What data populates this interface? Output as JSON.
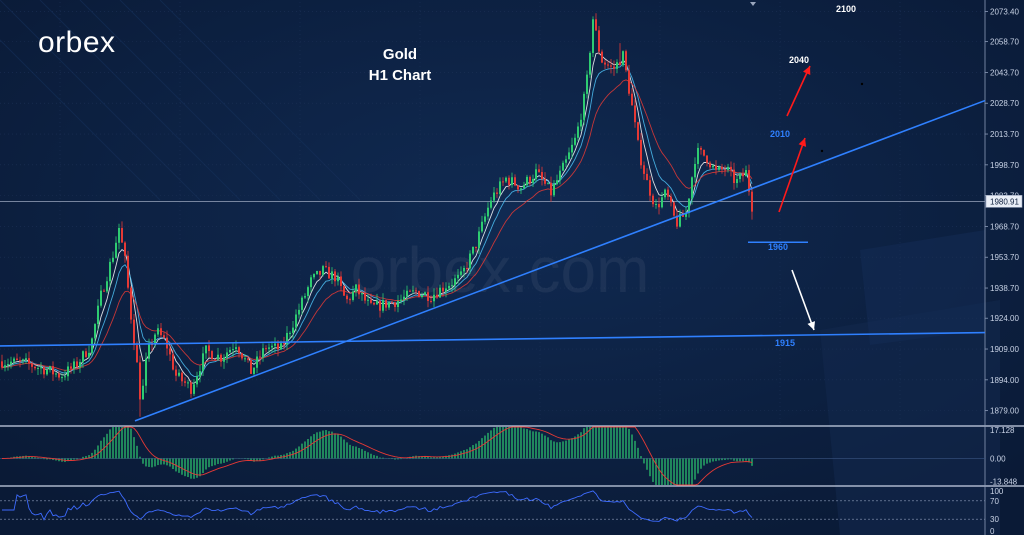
{
  "brand": {
    "logo_text": "orbex",
    "watermark": "orbex.com"
  },
  "header": {
    "title_line1": "Gold",
    "title_line2": "H1 Chart"
  },
  "colors": {
    "background": "#0b1c3a",
    "grid": "#1c3156",
    "bull_candle": "#2ecc71",
    "bear_candle": "#e53935",
    "trendline": "#2f80ff",
    "target_up_arrow": "#ff1a1a",
    "target_down_arrow": "#ffffff",
    "label_blue": "#2f80ff",
    "label_white": "#ffffff",
    "ma_fast": "#ffffff",
    "ma_mid": "#4fc3f7",
    "ma_slow": "#e53935",
    "rsi_line": "#3d6bff"
  },
  "chart_data": [
    {
      "type": "line",
      "name": "Gold H1 price (candlestick)",
      "y_ticks": [
        "2073.40",
        "2058.70",
        "2043.70",
        "2028.70",
        "2013.70",
        "1998.70",
        "1983.70",
        "1968.70",
        "1953.70",
        "1938.70",
        "1924.00",
        "1909.00",
        "1894.00",
        "1879.00"
      ],
      "ylim": [
        1872,
        2078
      ],
      "current_price": "1980.91",
      "levels": [
        {
          "label": "2100",
          "value": 2100,
          "color": "#ffffff"
        },
        {
          "label": "2040",
          "value": 2040,
          "color": "#ffffff"
        },
        {
          "label": "2010",
          "value": 2010,
          "color": "#2f80ff"
        },
        {
          "label": "1960",
          "value": 1960,
          "color": "#2f80ff"
        },
        {
          "label": "1915",
          "value": 1915,
          "color": "#2f80ff"
        }
      ],
      "price_path": [
        [
          0,
          1903
        ],
        [
          25,
          1902
        ],
        [
          45,
          1899
        ],
        [
          60,
          1896
        ],
        [
          75,
          1901
        ],
        [
          90,
          1911
        ],
        [
          100,
          1935
        ],
        [
          112,
          1955
        ],
        [
          118,
          1968
        ],
        [
          124,
          1952
        ],
        [
          130,
          1925
        ],
        [
          135,
          1906
        ],
        [
          140,
          1882
        ],
        [
          146,
          1906
        ],
        [
          155,
          1918
        ],
        [
          165,
          1912
        ],
        [
          175,
          1896
        ],
        [
          190,
          1890
        ],
        [
          205,
          1908
        ],
        [
          220,
          1905
        ],
        [
          235,
          1912
        ],
        [
          250,
          1898
        ],
        [
          265,
          1910
        ],
        [
          280,
          1909
        ],
        [
          295,
          1925
        ],
        [
          310,
          1942
        ],
        [
          322,
          1947
        ],
        [
          335,
          1944
        ],
        [
          345,
          1932
        ],
        [
          355,
          1938
        ],
        [
          370,
          1929
        ],
        [
          385,
          1931
        ],
        [
          400,
          1933
        ],
        [
          415,
          1937
        ],
        [
          430,
          1935
        ],
        [
          445,
          1940
        ],
        [
          460,
          1944
        ],
        [
          475,
          1960
        ],
        [
          490,
          1982
        ],
        [
          505,
          1992
        ],
        [
          520,
          1988
        ],
        [
          535,
          1995
        ],
        [
          550,
          1985
        ],
        [
          565,
          2000
        ],
        [
          575,
          2012
        ],
        [
          585,
          2035
        ],
        [
          592,
          2070
        ],
        [
          600,
          2050
        ],
        [
          612,
          2045
        ],
        [
          622,
          2052
        ],
        [
          630,
          2030
        ],
        [
          638,
          2005
        ],
        [
          646,
          1990
        ],
        [
          655,
          1978
        ],
        [
          665,
          1985
        ],
        [
          675,
          1970
        ],
        [
          685,
          1975
        ],
        [
          695,
          2005
        ],
        [
          705,
          2003
        ],
        [
          715,
          1995
        ],
        [
          725,
          1997
        ],
        [
          735,
          1990
        ],
        [
          745,
          1995
        ],
        [
          752,
          1976
        ]
      ]
    },
    {
      "type": "bar",
      "name": "MACD histogram",
      "y_ticks": [
        "17.128",
        "0.00",
        "-13.848"
      ],
      "ylim": [
        -16,
        19
      ]
    },
    {
      "type": "line",
      "name": "RSI",
      "y_ticks": [
        "100",
        "70",
        "30",
        "0"
      ],
      "ylim": [
        0,
        100
      ]
    }
  ]
}
